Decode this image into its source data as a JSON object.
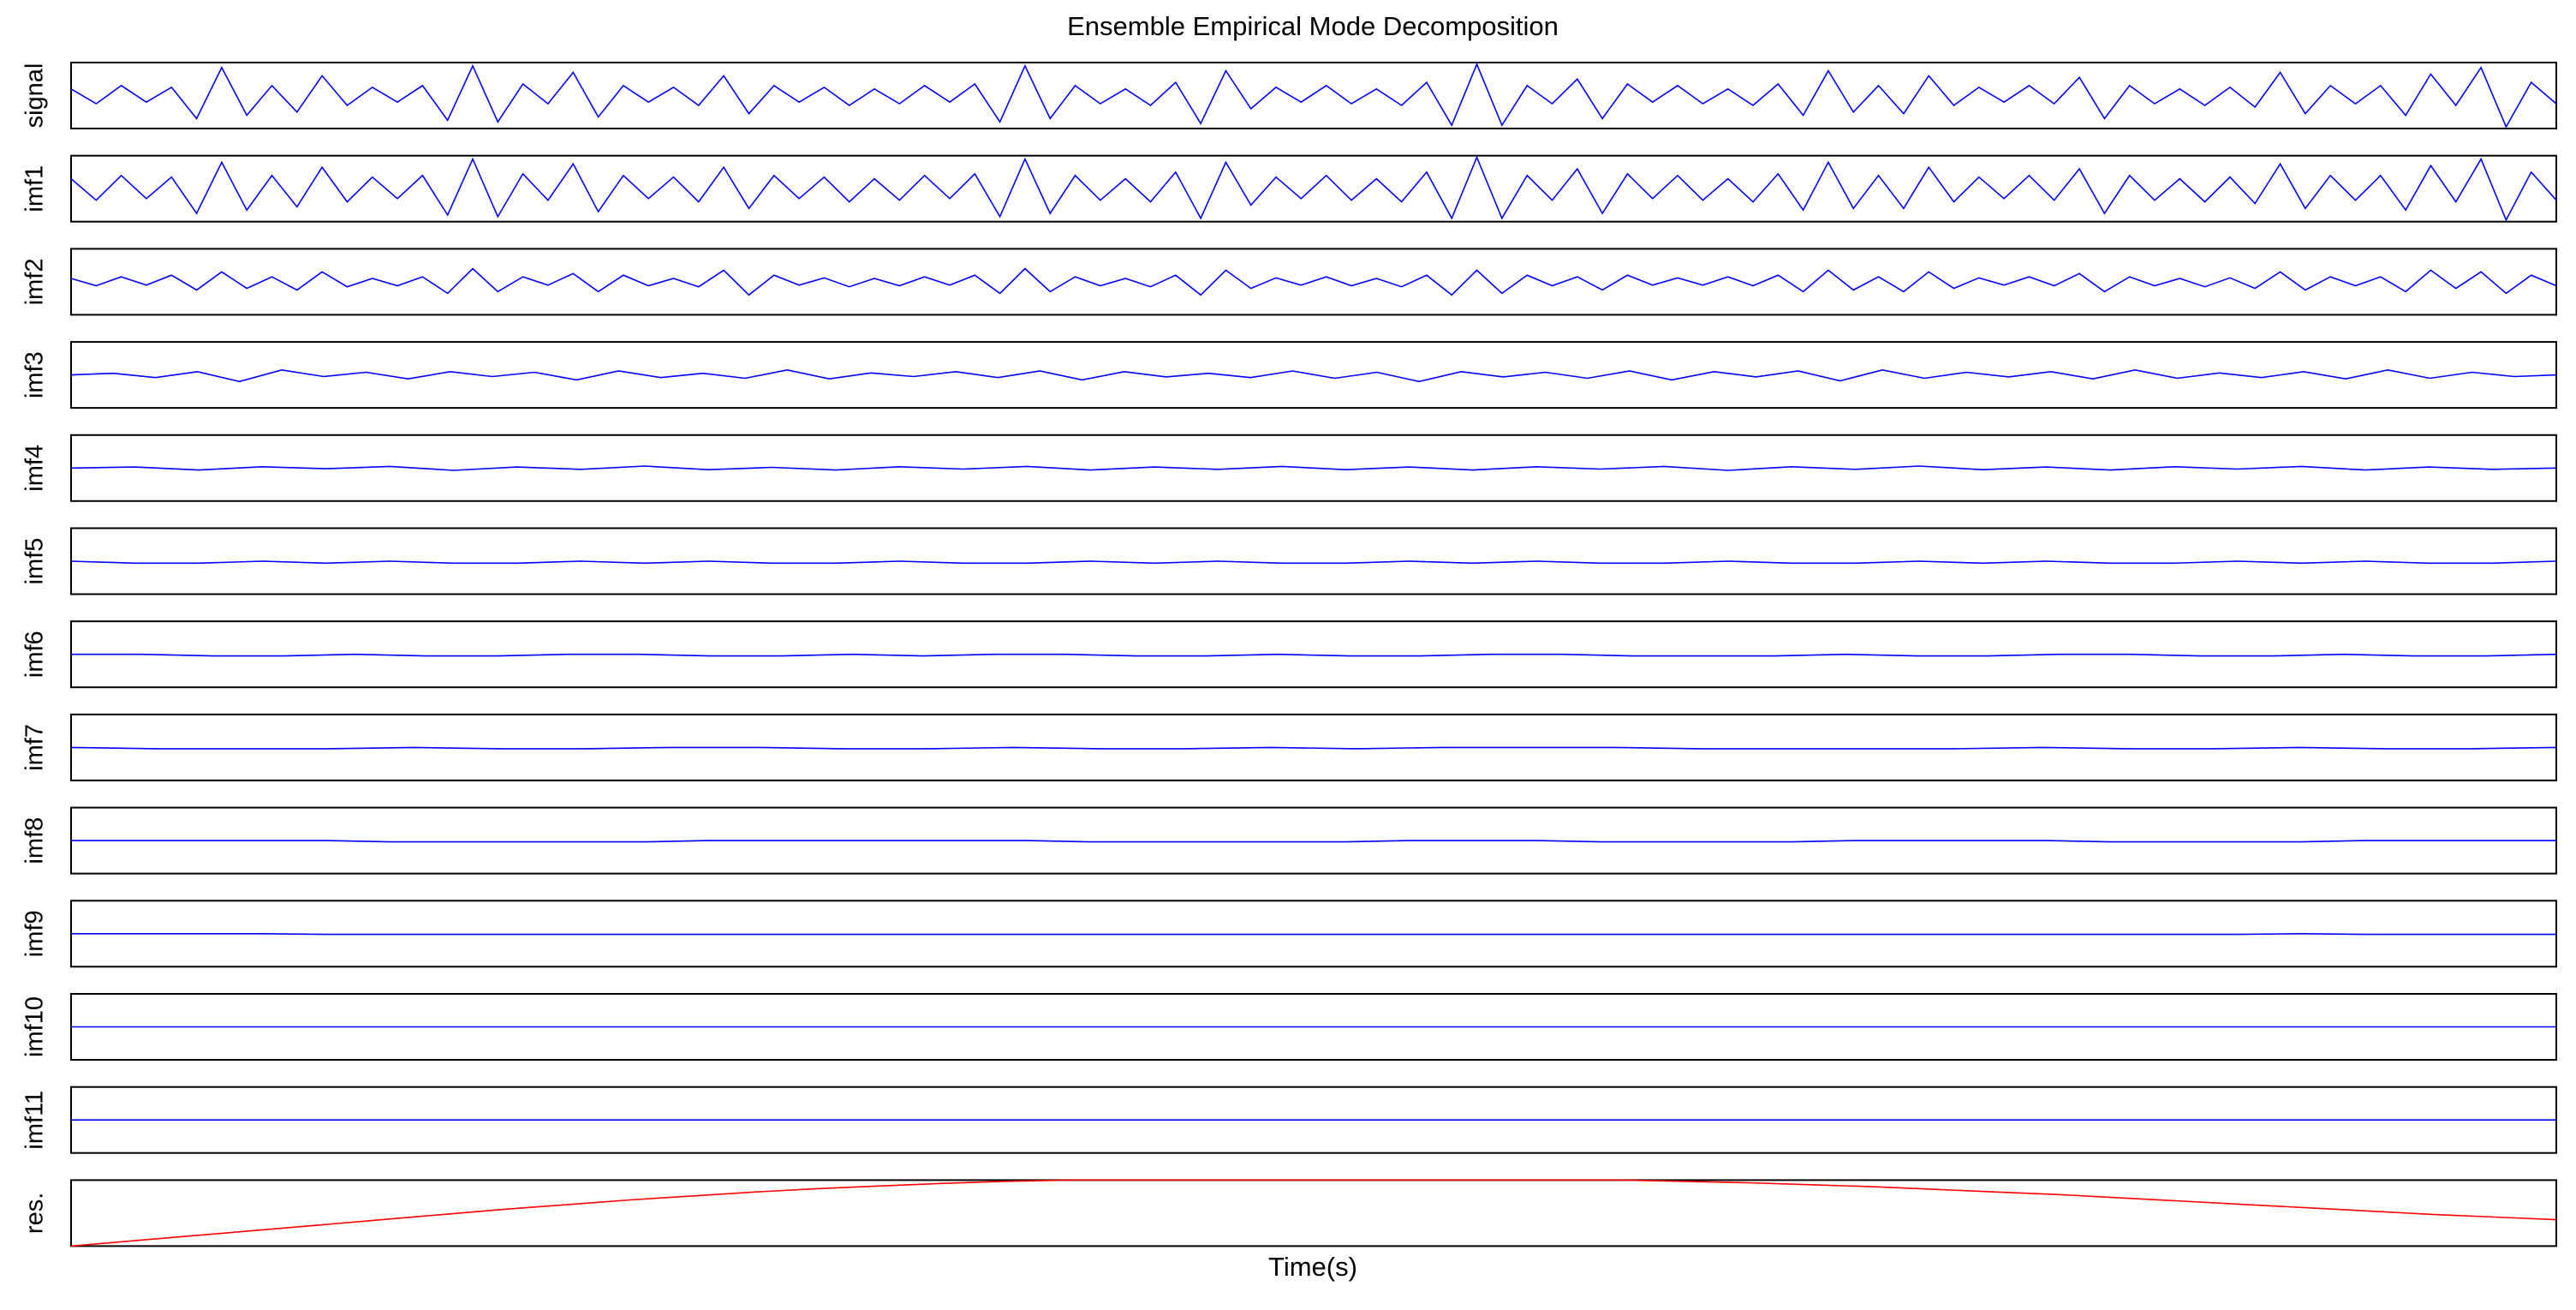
{
  "chart_data": {
    "type": "line",
    "title": "Ensemble Empirical Mode Decomposition",
    "x_label": "Time(s)",
    "series": [
      {
        "name": "signal",
        "color": "#0000ff",
        "ylim": [
          -1,
          1
        ],
        "values": [
          0.2,
          -0.25,
          0.3,
          -0.2,
          0.25,
          -0.7,
          0.85,
          -0.6,
          0.3,
          -0.5,
          0.6,
          -0.3,
          0.25,
          -0.2,
          0.3,
          -0.75,
          0.9,
          -0.8,
          0.35,
          -0.25,
          0.7,
          -0.65,
          0.3,
          -0.2,
          0.25,
          -0.3,
          0.6,
          -0.55,
          0.3,
          -0.2,
          0.25,
          -0.3,
          0.2,
          -0.25,
          0.3,
          -0.2,
          0.35,
          -0.8,
          0.9,
          -0.7,
          0.3,
          -0.25,
          0.2,
          -0.3,
          0.4,
          -0.85,
          0.75,
          -0.4,
          0.25,
          -0.2,
          0.3,
          -0.25,
          0.2,
          -0.3,
          0.4,
          -0.9,
          0.95,
          -0.9,
          0.3,
          -0.25,
          0.5,
          -0.7,
          0.35,
          -0.2,
          0.3,
          -0.25,
          0.2,
          -0.3,
          0.35,
          -0.6,
          0.75,
          -0.5,
          0.3,
          -0.55,
          0.6,
          -0.3,
          0.25,
          -0.2,
          0.3,
          -0.25,
          0.55,
          -0.7,
          0.3,
          -0.25,
          0.2,
          -0.3,
          0.25,
          -0.35,
          0.7,
          -0.55,
          0.3,
          -0.25,
          0.3,
          -0.6,
          0.65,
          -0.3,
          0.85,
          -0.95,
          0.4,
          -0.25
        ]
      },
      {
        "name": "imf1",
        "color": "#0000ff",
        "ylim": [
          -1,
          1
        ],
        "values": [
          0.3,
          -0.35,
          0.4,
          -0.3,
          0.35,
          -0.75,
          0.8,
          -0.65,
          0.4,
          -0.55,
          0.65,
          -0.4,
          0.35,
          -0.3,
          0.4,
          -0.8,
          0.9,
          -0.85,
          0.45,
          -0.35,
          0.75,
          -0.7,
          0.4,
          -0.3,
          0.35,
          -0.4,
          0.65,
          -0.6,
          0.4,
          -0.3,
          0.35,
          -0.4,
          0.3,
          -0.35,
          0.4,
          -0.3,
          0.45,
          -0.85,
          0.9,
          -0.75,
          0.4,
          -0.35,
          0.3,
          -0.4,
          0.5,
          -0.9,
          0.8,
          -0.5,
          0.35,
          -0.3,
          0.4,
          -0.35,
          0.3,
          -0.4,
          0.5,
          -0.9,
          0.95,
          -0.9,
          0.4,
          -0.35,
          0.6,
          -0.75,
          0.45,
          -0.3,
          0.4,
          -0.35,
          0.3,
          -0.4,
          0.45,
          -0.65,
          0.8,
          -0.6,
          0.4,
          -0.6,
          0.65,
          -0.4,
          0.35,
          -0.3,
          0.4,
          -0.35,
          0.6,
          -0.75,
          0.4,
          -0.35,
          0.3,
          -0.4,
          0.35,
          -0.45,
          0.75,
          -0.6,
          0.4,
          -0.35,
          0.4,
          -0.65,
          0.7,
          -0.4,
          0.9,
          -0.95,
          0.5,
          -0.35
        ]
      },
      {
        "name": "imf2",
        "color": "#0000ff",
        "ylim": [
          -1,
          1
        ],
        "values": [
          0.1,
          -0.12,
          0.15,
          -0.1,
          0.2,
          -0.25,
          0.3,
          -0.2,
          0.15,
          -0.25,
          0.3,
          -0.15,
          0.1,
          -0.12,
          0.15,
          -0.35,
          0.4,
          -0.3,
          0.15,
          -0.1,
          0.25,
          -0.3,
          0.2,
          -0.12,
          0.1,
          -0.15,
          0.35,
          -0.4,
          0.2,
          -0.1,
          0.12,
          -0.15,
          0.1,
          -0.12,
          0.15,
          -0.1,
          0.2,
          -0.35,
          0.4,
          -0.3,
          0.15,
          -0.12,
          0.1,
          -0.15,
          0.2,
          -0.4,
          0.35,
          -0.2,
          0.12,
          -0.1,
          0.15,
          -0.12,
          0.1,
          -0.15,
          0.2,
          -0.4,
          0.35,
          -0.35,
          0.2,
          -0.12,
          0.15,
          -0.25,
          0.2,
          -0.1,
          0.12,
          -0.1,
          0.15,
          -0.12,
          0.2,
          -0.3,
          0.35,
          -0.25,
          0.15,
          -0.3,
          0.3,
          -0.2,
          0.12,
          -0.1,
          0.15,
          -0.12,
          0.25,
          -0.3,
          0.15,
          -0.12,
          0.1,
          -0.15,
          0.12,
          -0.2,
          0.3,
          -0.25,
          0.15,
          -0.12,
          0.15,
          -0.3,
          0.35,
          -0.2,
          0.3,
          -0.35,
          0.2,
          -0.12
        ]
      },
      {
        "name": "imf3",
        "color": "#0000ff",
        "ylim": [
          -1,
          1
        ],
        "values": [
          0,
          0.05,
          -0.08,
          0.1,
          -0.2,
          0.15,
          -0.05,
          0.08,
          -0.12,
          0.1,
          -0.05,
          0.08,
          -0.15,
          0.12,
          -0.08,
          0.05,
          -0.1,
          0.15,
          -0.12,
          0.06,
          -0.05,
          0.1,
          -0.08,
          0.12,
          -0.15,
          0.1,
          -0.06,
          0.05,
          -0.08,
          0.12,
          -0.1,
          0.08,
          -0.2,
          0.1,
          -0.06,
          0.08,
          -0.1,
          0.12,
          -0.15,
          0.1,
          -0.06,
          0.12,
          -0.18,
          0.15,
          -0.1,
          0.08,
          -0.06,
          0.1,
          -0.12,
          0.15,
          -0.1,
          0.06,
          -0.08,
          0.1,
          -0.12,
          0.15,
          -0.1,
          0.08,
          -0.05,
          0
        ]
      },
      {
        "name": "imf4",
        "color": "#0000ff",
        "ylim": [
          -1,
          1
        ],
        "values": [
          0,
          0.03,
          -0.06,
          0.04,
          -0.02,
          0.05,
          -0.07,
          0.03,
          -0.04,
          0.06,
          -0.05,
          0.02,
          -0.06,
          0.04,
          -0.03,
          0.05,
          -0.06,
          0.03,
          -0.04,
          0.05,
          -0.05,
          0.03,
          -0.06,
          0.04,
          -0.03,
          0.05,
          -0.07,
          0.04,
          -0.04,
          0.06,
          -0.05,
          0.03,
          -0.06,
          0.04,
          -0.03,
          0.05,
          -0.06,
          0.03,
          -0.04,
          0
        ]
      },
      {
        "name": "imf5",
        "color": "#0000ff",
        "ylim": [
          -1,
          1
        ],
        "values": [
          0,
          -0.06,
          -0.06,
          0,
          -0.06,
          0,
          -0.06,
          -0.06,
          0,
          -0.06,
          0,
          -0.06,
          -0.06,
          0,
          -0.06,
          -0.06,
          0,
          -0.06,
          0,
          -0.06,
          -0.06,
          0,
          -0.06,
          0,
          -0.06,
          -0.06,
          0,
          -0.06,
          -0.06,
          0,
          -0.06,
          0,
          -0.06,
          -0.06,
          0,
          -0.06,
          0,
          -0.06,
          -0.06,
          0
        ]
      },
      {
        "name": "imf6",
        "color": "#0000ff",
        "ylim": [
          -1,
          1
        ],
        "values": [
          0,
          0,
          -0.05,
          -0.05,
          0,
          -0.05,
          -0.05,
          0,
          0,
          -0.05,
          -0.05,
          0,
          -0.05,
          0,
          0,
          -0.05,
          -0.05,
          0,
          -0.05,
          -0.05,
          0,
          0,
          -0.05,
          -0.05,
          -0.05,
          0,
          -0.05,
          -0.05,
          0,
          0,
          -0.05,
          -0.05,
          0,
          -0.05,
          -0.05,
          0
        ]
      },
      {
        "name": "imf7",
        "color": "#0000ff",
        "ylim": [
          -1,
          1
        ],
        "values": [
          0,
          -0.04,
          -0.04,
          -0.04,
          0,
          -0.04,
          -0.04,
          0,
          0,
          -0.04,
          -0.04,
          0,
          -0.04,
          -0.04,
          0,
          -0.04,
          0,
          0,
          0,
          -0.04,
          -0.04,
          -0.04,
          -0.04,
          0,
          -0.04,
          -0.04,
          0,
          -0.04,
          -0.04,
          0
        ]
      },
      {
        "name": "imf8",
        "color": "#0000ff",
        "ylim": [
          -1,
          1
        ],
        "values": [
          0,
          0,
          0,
          0,
          0,
          -0.04,
          -0.04,
          -0.04,
          -0.04,
          -0.04,
          0,
          0,
          0,
          0,
          0,
          0,
          -0.04,
          -0.04,
          -0.04,
          -0.04,
          -0.04,
          0,
          0,
          0,
          -0.04,
          -0.04,
          -0.04,
          -0.04,
          0,
          0,
          0,
          0,
          -0.04,
          -0.04,
          -0.04,
          -0.04,
          0,
          0,
          0,
          0
        ]
      },
      {
        "name": "imf9",
        "color": "#0000ff",
        "ylim": [
          -1,
          1
        ],
        "values": [
          0,
          0,
          0,
          0,
          -0.02,
          -0.02,
          -0.02,
          -0.02,
          -0.02,
          -0.02,
          -0.02,
          -0.02,
          -0.02,
          -0.02,
          -0.02,
          -0.02,
          -0.02,
          -0.02,
          -0.02,
          -0.02,
          -0.02,
          -0.02,
          -0.02,
          -0.02,
          -0.02,
          -0.02,
          -0.02,
          -0.02,
          -0.02,
          -0.02,
          -0.02,
          -0.02,
          -0.02,
          -0.02,
          -0.02,
          0,
          -0.02,
          -0.02,
          -0.02,
          -0.02
        ]
      },
      {
        "name": "imf10",
        "color": "#0000ff",
        "ylim": [
          -1,
          1
        ],
        "values": [
          0,
          0
        ]
      },
      {
        "name": "imf11",
        "color": "#0000ff",
        "ylim": [
          -1,
          1
        ],
        "values": [
          0,
          0
        ]
      },
      {
        "name": "res.",
        "color": "#ff0000",
        "ylim": [
          0,
          1
        ],
        "values": [
          0,
          0.08,
          0.16,
          0.24,
          0.32,
          0.4,
          0.48,
          0.56,
          0.63,
          0.7,
          0.76,
          0.82,
          0.87,
          0.91,
          0.95,
          0.98,
          1,
          1,
          1,
          1,
          1,
          1,
          1,
          1,
          1,
          1,
          0.98,
          0.96,
          0.93,
          0.9,
          0.86,
          0.82,
          0.78,
          0.73,
          0.68,
          0.63,
          0.58,
          0.53,
          0.48,
          0.44,
          0.4
        ]
      }
    ]
  }
}
